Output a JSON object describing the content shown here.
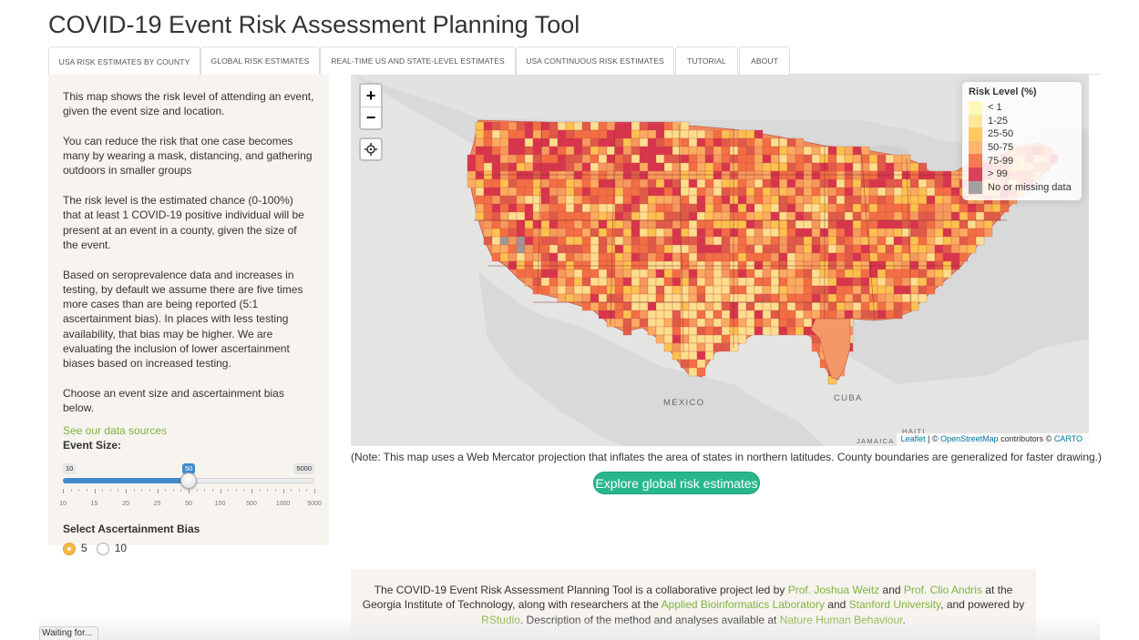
{
  "page": {
    "title": "COVID-19 Event Risk Assessment Planning Tool"
  },
  "tabs": [
    {
      "label": "USA RISK ESTIMATES BY COUNTY",
      "active": true
    },
    {
      "label": "GLOBAL RISK ESTIMATES",
      "active": false
    },
    {
      "label": "REAL-TIME US AND STATE-LEVEL ESTIMATES",
      "active": false
    },
    {
      "label": "USA CONTINUOUS RISK ESTIMATES",
      "active": false
    },
    {
      "label": "TUTORIAL",
      "active": false
    },
    {
      "label": "ABOUT",
      "active": false
    }
  ],
  "sidebar": {
    "paragraphs": [
      "This map shows the risk level of attending an event, given the event size and location.",
      "You can reduce the risk that one case becomes many by wearing a mask, distancing, and gathering outdoors in smaller groups",
      "The risk level is the estimated chance (0-100%) that at least 1 COVID-19 positive individual will be present at an event in a county, given the size of the event.",
      "Based on seroprevalence data and increases in testing, by default we assume there are five times more cases than are being reported (5:1 ascertainment bias). In places with less testing availability, that bias may be higher. We are evaluating the inclusion of lower ascertainment biases based on increased testing.",
      "Choose an event size and ascertainment bias below."
    ],
    "data_sources_link": "See our data sources",
    "event_size": {
      "label": "Event Size:",
      "min": "10",
      "max": "5000",
      "value": "50",
      "ticks": [
        "10",
        "15",
        "20",
        "25",
        "50",
        "100",
        "500",
        "1000",
        "5000"
      ]
    },
    "ascertainment": {
      "label": "Select Ascertainment Bias",
      "options": [
        "5",
        "10"
      ],
      "selected": "5"
    }
  },
  "map": {
    "zoom_in": "+",
    "zoom_out": "−",
    "locate_icon": "crosshair-icon",
    "labels": {
      "mexico": "MEXICO",
      "cuba": "CUBA",
      "haiti": "HAITI",
      "jamaica": "JAMAICA"
    },
    "legend": {
      "title": "Risk Level (%)",
      "items": [
        {
          "label": "< 1",
          "color": "#fff7b3"
        },
        {
          "label": "1-25",
          "color": "#fee391"
        },
        {
          "label": "25-50",
          "color": "#fec44f"
        },
        {
          "label": "50-75",
          "color": "#fdae61"
        },
        {
          "label": "75-99",
          "color": "#f46d43"
        },
        {
          "label": "> 99",
          "color": "#d7304d"
        },
        {
          "label": "No or missing data",
          "color": "#999999"
        }
      ]
    },
    "attribution": {
      "leaflet": "Leaflet",
      "sep1": " | © ",
      "osm": "OpenStreetMap",
      "mid": " contributors © ",
      "carto": "CARTO"
    }
  },
  "note": "(Note: This map uses a Web Mercator projection that inflates the area of states in northern latitudes. County boundaries are generalized for faster drawing.)",
  "explore_button": "Explore global risk estimates",
  "footer": {
    "t1": "The COVID-19 Event Risk Assessment Planning Tool is a collaborative project led by ",
    "l1": "Prof. Joshua Weitz",
    "t2": " and ",
    "l2": "Prof. Clio Andris",
    "t3": " at the Georgia Institute of Technology, along with researchers at the ",
    "l3": "Applied Bioinformatics Laboratory",
    "t4": " and ",
    "l4": "Stanford University",
    "t5": ", and powered by ",
    "l5": "RStudio",
    "t6": ". Description of the method and analyses available at ",
    "l6": "Nature Human Behaviour",
    "t7": "."
  },
  "status": "Waiting for..."
}
